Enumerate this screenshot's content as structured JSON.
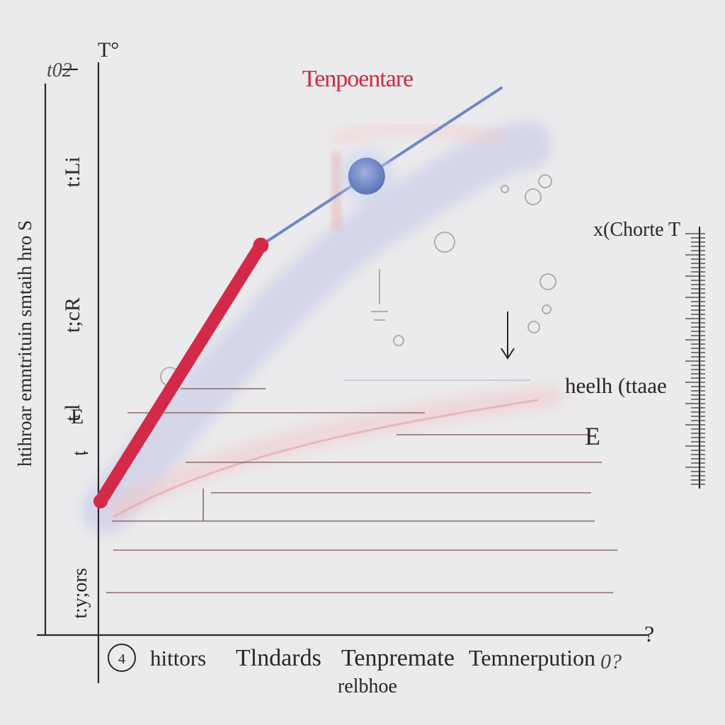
{
  "chart_data": {
    "type": "line",
    "title": "Tenpoentare",
    "top_axis_label": "T°",
    "top_left_label": "t02",
    "ylabel": "htihroar emntrituin smtaih hro S",
    "y_tick_labels": [
      "t",
      "t l",
      "E",
      "t;cR",
      "t:Li"
    ],
    "y2_label": "x(Chorte T",
    "annotation_label": "heelh (ttaae",
    "annotation_mark": "E",
    "bottom_left_label": "t:y;ors",
    "x_corner_label": "?",
    "x_tick_labels": [
      "hittors",
      "Tlndards",
      "Tenpremate",
      "Temnerpution",
      "0?"
    ],
    "xlabel": "relbhoe",
    "circle_marker": "4",
    "series": [
      {
        "x": [
          0,
          0.8
        ],
        "y": [
          0,
          0.52
        ],
        "color": "#d32a49"
      },
      {
        "x": [
          0.8,
          2.0
        ],
        "y": [
          0.52,
          0.84
        ],
        "color": "#6f86c9"
      }
    ],
    "grid": true,
    "colors": {
      "primary": "#d32a49",
      "secondary": "#6f86c9",
      "title": "#cf2a3e"
    }
  }
}
